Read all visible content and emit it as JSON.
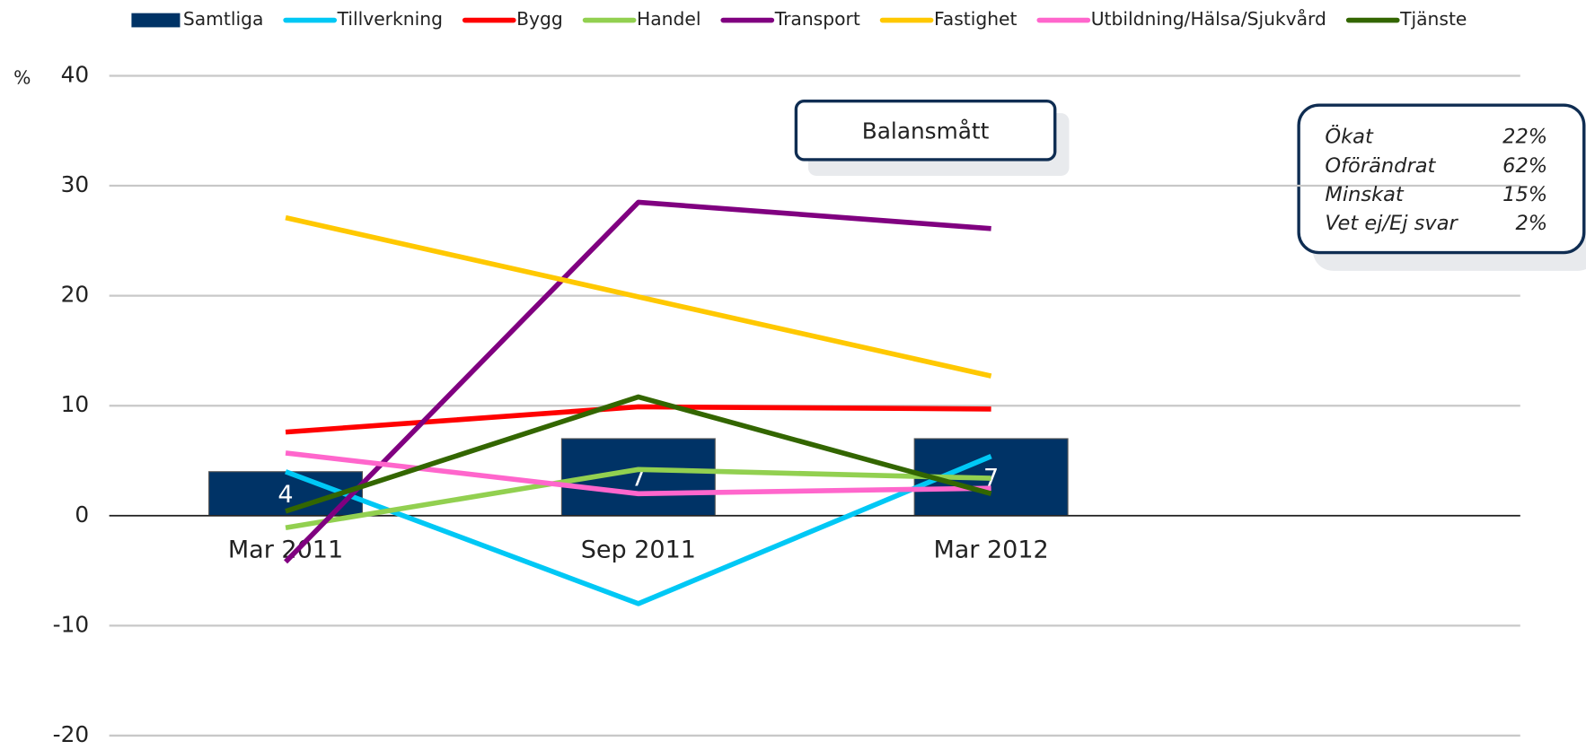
{
  "chart_data": {
    "type": "line",
    "y_unit": "%",
    "categories": [
      "Mar 2011",
      "Sep 2011",
      "Mar 2012",
      null
    ],
    "ylim": [
      -20,
      40
    ],
    "yticks": [
      -20,
      -10,
      0,
      10,
      20,
      30,
      40
    ],
    "grid": true,
    "legend": "top",
    "series": [
      {
        "name": "Samtliga",
        "type": "bar",
        "color": "#003366",
        "values": [
          4,
          7,
          7,
          null
        ]
      },
      {
        "name": "Tillverkning",
        "type": "line",
        "color": "#00c8f5",
        "values": [
          4.0,
          -8.0,
          5.4,
          null
        ]
      },
      {
        "name": "Bygg",
        "type": "line",
        "color": "#ff0000",
        "values": [
          7.6,
          9.9,
          9.7,
          null
        ]
      },
      {
        "name": "Handel",
        "type": "line",
        "color": "#92d050",
        "values": [
          -1.1,
          4.2,
          3.4,
          null
        ]
      },
      {
        "name": "Transport",
        "type": "line",
        "color": "#800080",
        "values": [
          -4.2,
          28.5,
          26.1,
          null
        ]
      },
      {
        "name": "Fastighet",
        "type": "line",
        "color": "#ffc800",
        "values": [
          27.1,
          19.9,
          12.7,
          null
        ]
      },
      {
        "name": "Utbildning/Hälsa/Sjukvård",
        "type": "line",
        "color": "#ff66cc",
        "values": [
          5.7,
          2.0,
          2.5,
          null
        ]
      },
      {
        "name": "Tjänste",
        "type": "line",
        "color": "#336600",
        "values": [
          0.4,
          10.8,
          2.0,
          null
        ]
      }
    ],
    "annotations": {
      "title_box": "Balansmått",
      "info_box": [
        {
          "label": "Ökat",
          "value": "22%"
        },
        {
          "label": "Oförändrat",
          "value": "62%"
        },
        {
          "label": "Minskat",
          "value": "15%"
        },
        {
          "label": "Vet ej/Ej svar",
          "value": "2%"
        }
      ]
    }
  }
}
